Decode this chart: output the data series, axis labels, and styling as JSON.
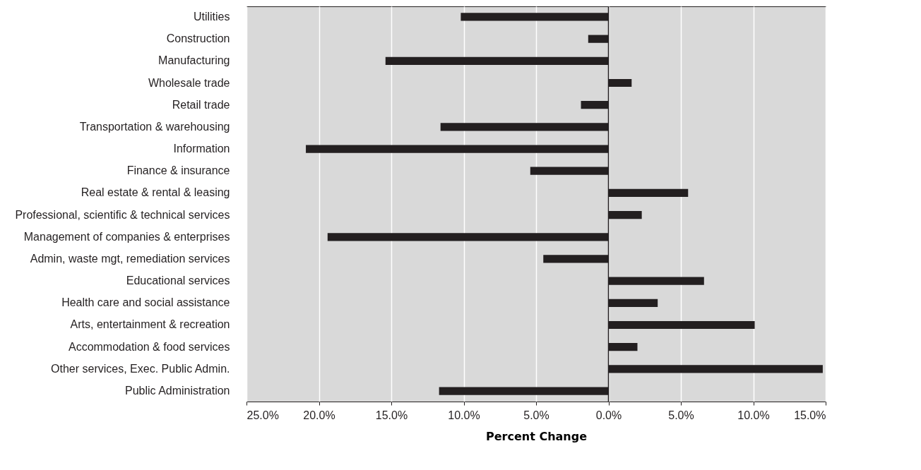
{
  "chart_data": {
    "type": "bar",
    "orientation": "horizontal",
    "xlabel": "Percent Change",
    "categories": [
      "Utilities",
      "Construction",
      "Manufacturing",
      "Wholesale trade",
      "Retail trade",
      "Transportation & warehousing",
      "Information",
      "Finance & insurance",
      "Real estate & rental & leasing",
      "Professional, scientific & technical services",
      "Management of companies & enterprises",
      "Admin, waste mgt, remediation services",
      "Educational services",
      "Health care and social assistance",
      "Arts, entertainment & recreation",
      "Accommodation & food services",
      "Other services, Exec. Public Admin.",
      "Public Administration"
    ],
    "values": [
      -10.2,
      -1.4,
      -15.4,
      1.6,
      -1.9,
      -11.6,
      -20.9,
      -5.4,
      5.5,
      2.3,
      -19.4,
      -4.5,
      6.6,
      3.4,
      10.1,
      2.0,
      14.8,
      -11.7
    ],
    "color": "#231f20",
    "xlim": [
      -25,
      15
    ],
    "xticks": [
      {
        "value": -25,
        "label": "25.0%"
      },
      {
        "value": -20,
        "label": "20.0%"
      },
      {
        "value": -15,
        "label": "15.0%"
      },
      {
        "value": -10,
        "label": "10.0%"
      },
      {
        "value": -5,
        "label": "5.0%"
      },
      {
        "value": 0,
        "label": "0.0%"
      },
      {
        "value": 5,
        "label": "5.0%"
      },
      {
        "value": 10,
        "label": "10.0%"
      },
      {
        "value": 15,
        "label": "15.0%"
      }
    ],
    "ref_lines": [
      {
        "axis": "x",
        "value": 0,
        "color": "#231f20"
      }
    ],
    "grid": "x"
  }
}
